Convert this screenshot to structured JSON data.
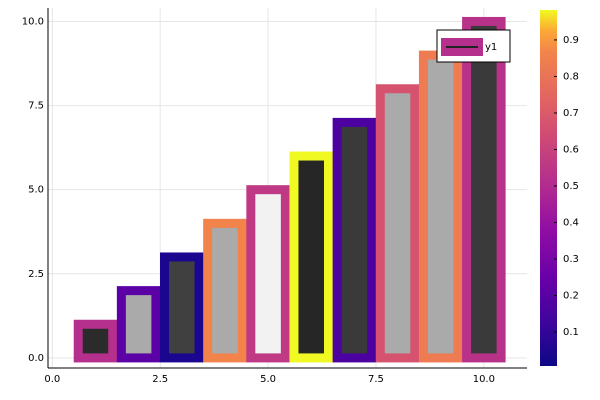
{
  "chart_data": {
    "type": "bar",
    "categories": [
      1,
      2,
      3,
      4,
      5,
      6,
      7,
      8,
      9,
      10
    ],
    "series": [
      {
        "name": "y1",
        "values": [
          1,
          2,
          3,
          4,
          5,
          6,
          7,
          8,
          9,
          10
        ],
        "line_colors": [
          "#b52f8c",
          "#5c01a6",
          "#1a068f",
          "#f2844b",
          "#bf3984",
          "#f0f921",
          "#4c02a1",
          "#d5536f",
          "#ee7b51",
          "#b83289"
        ],
        "fill_colors": [
          "#2b2b2b",
          "#aaaaaa",
          "#404040",
          "#aaaaaa",
          "#f2f2f2",
          "#262626",
          "#3a3a3a",
          "#aaaaaa",
          "#aaaaaa",
          "#3a3a3a"
        ]
      }
    ],
    "xlim": [
      -0.1,
      11.0
    ],
    "xticks": [
      {
        "value": 0,
        "label": "0.0"
      },
      2.5,
      {
        "value": 5,
        "label": "5.0"
      },
      7.5,
      {
        "value": 10,
        "label": "10.0"
      }
    ],
    "ylim": [
      -0.3,
      10.4
    ],
    "yticks": [
      {
        "value": 0,
        "label": "0.0"
      },
      2.5,
      {
        "value": 5,
        "label": "5.0"
      },
      7.5,
      {
        "value": 10,
        "label": "10.0"
      }
    ],
    "grid": true,
    "legend": "top right",
    "colormap": "plasma",
    "clim": [
      0.007,
      0.982
    ],
    "cticks": [
      0.1,
      0.2,
      0.3,
      0.4,
      0.5,
      0.6,
      0.7,
      0.8,
      0.9
    ]
  }
}
